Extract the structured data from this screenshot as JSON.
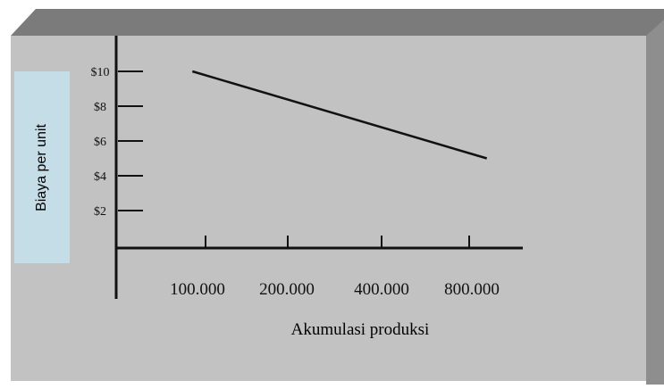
{
  "chart_data": {
    "type": "line",
    "title": "",
    "xlabel": "Akumulasi produksi",
    "ylabel": "Biaya per unit",
    "x_categories": [
      "100.000",
      "200.000",
      "400.000",
      "800.000"
    ],
    "y_ticks": [
      {
        "value": 2,
        "label": "$2"
      },
      {
        "value": 4,
        "label": "$4"
      },
      {
        "value": 6,
        "label": "$6"
      },
      {
        "value": 8,
        "label": "$8"
      },
      {
        "value": 10,
        "label": "$10"
      }
    ],
    "ylim": [
      0,
      10.5
    ],
    "series": [
      {
        "points": [
          {
            "x": 0.85,
            "y": 10
          },
          {
            "x": 4.2,
            "y": 5
          }
        ]
      }
    ],
    "grid": false
  },
  "colors": {
    "panel": "#c2c2c2",
    "panel_top": "#7b7b7b",
    "panel_side": "#8e8e8e",
    "ylabel_box": "#c4dde6",
    "ink": "#111111"
  }
}
